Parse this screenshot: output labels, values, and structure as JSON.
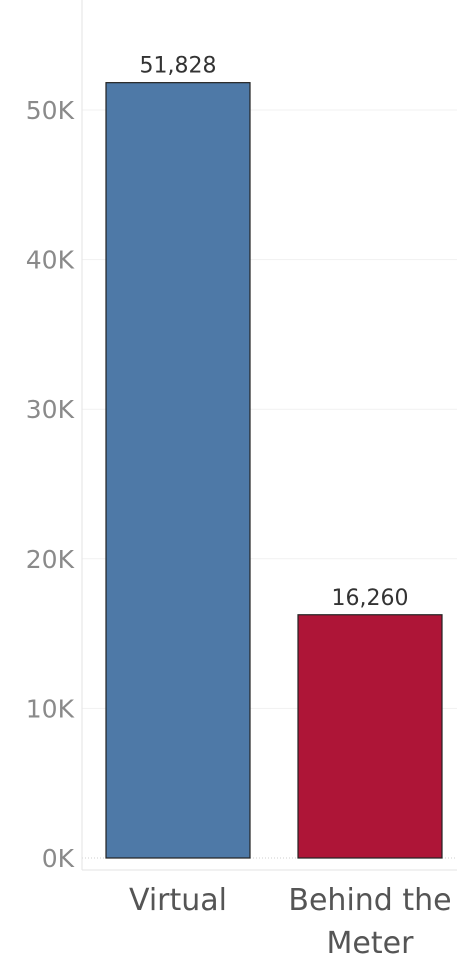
{
  "chart_data": {
    "type": "bar",
    "categories": [
      "Virtual",
      "Behind the Meter"
    ],
    "category_label_lines": [
      [
        "Virtual"
      ],
      [
        "Behind the",
        "Meter"
      ]
    ],
    "values": [
      51828,
      16260
    ],
    "value_labels": [
      "51,828",
      "16,260"
    ],
    "bar_colors": [
      "#4E79A7",
      "#AE1537"
    ],
    "ylim": [
      0,
      55000
    ],
    "yticks": [
      0,
      10000,
      20000,
      30000,
      40000,
      50000
    ],
    "ytick_labels": [
      "0K",
      "10K",
      "20K",
      "30K",
      "40K",
      "50K"
    ],
    "grid": true,
    "title": "",
    "xlabel": "",
    "ylabel": ""
  }
}
